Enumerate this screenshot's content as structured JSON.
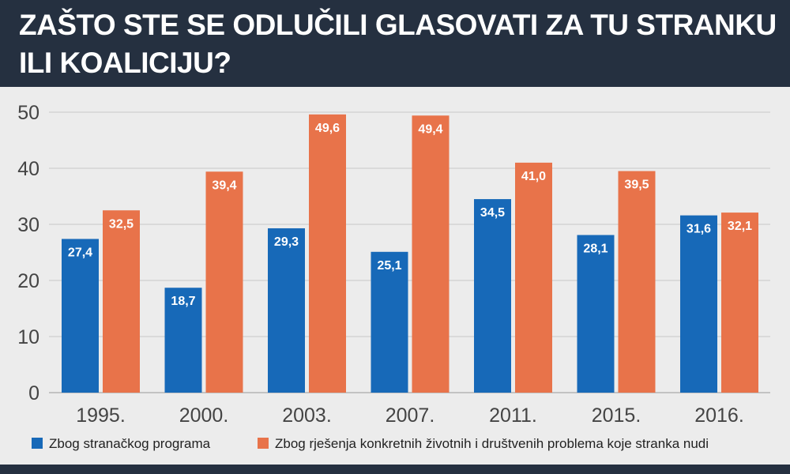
{
  "title": "ZAŠTO STE SE ODLUČILI GLASOVATI ZA TU STRANKU ILI KOALICIJU?",
  "chart_data": {
    "type": "bar",
    "title": "ZAŠTO STE SE ODLUČILI GLASOVATI ZA TU STRANKU ILI KOALICIJU?",
    "categories": [
      "1995.",
      "2000.",
      "2003.",
      "2007.",
      "2011.",
      "2015.",
      "2016."
    ],
    "series": [
      {
        "name": "Zbog stranačkog programa",
        "color": "#1769b8",
        "values": [
          27.4,
          18.7,
          29.3,
          25.1,
          34.5,
          28.1,
          31.6
        ],
        "labels": [
          "27,4",
          "18,7",
          "29,3",
          "25,1",
          "34,5",
          "28,1",
          "31,6"
        ]
      },
      {
        "name": "Zbog rješenja konkretnih životnih i društvenih problema koje stranka nudi",
        "color": "#e8734a",
        "values": [
          32.5,
          39.4,
          49.6,
          49.4,
          41.0,
          39.5,
          32.1
        ],
        "labels": [
          "32,5",
          "39,4",
          "49,6",
          "49,4",
          "41,0",
          "39,5",
          "32,1"
        ]
      }
    ],
    "yticks": [
      "0",
      "10",
      "20",
      "30",
      "40",
      "50"
    ],
    "ylim": [
      0,
      50
    ],
    "grid": true,
    "legend_position": "bottom"
  },
  "colors": {
    "header_background": "#253040",
    "plot_background": "#ececec",
    "gridline": "#c8c8c8"
  }
}
